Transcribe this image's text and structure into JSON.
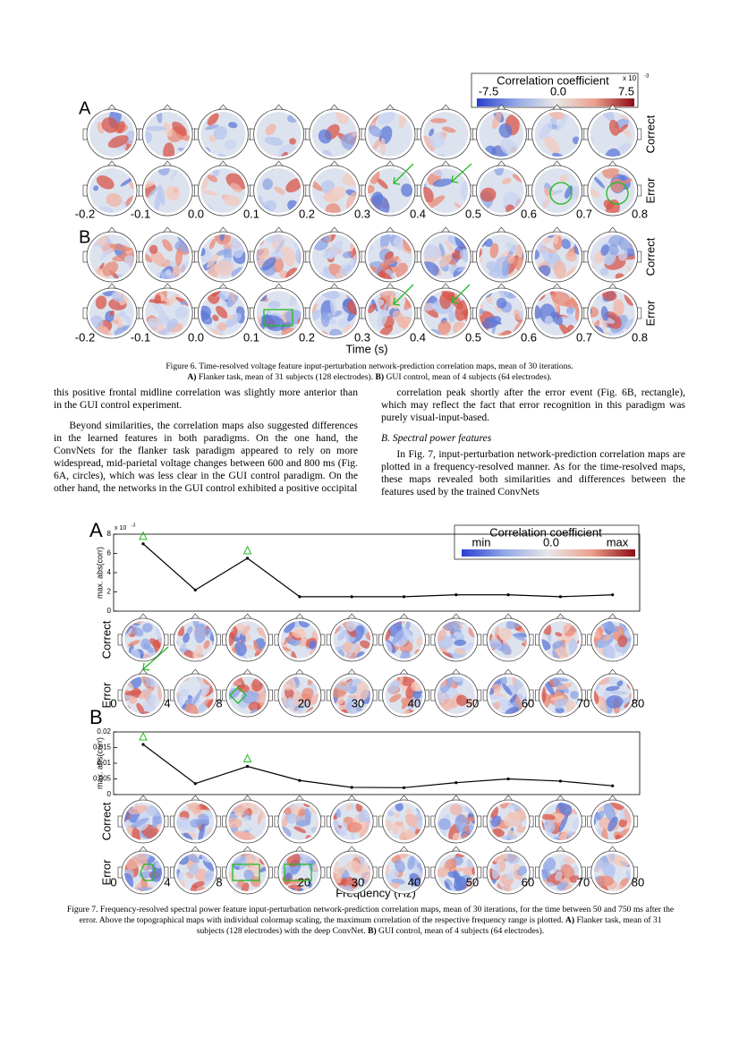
{
  "figure6": {
    "panel_labels": [
      "A",
      "B"
    ],
    "row_labels": [
      "Correct",
      "Error"
    ],
    "colorbar": {
      "title": "Correlation coefficient",
      "exponent": "x 10",
      "exponent_power": "-3",
      "labels": [
        "-7.5",
        "0.0",
        "7.5"
      ]
    },
    "time_ticks": [
      "-0.2",
      "-0.1",
      "0.0",
      "0.1",
      "0.2",
      "0.3",
      "0.4",
      "0.5",
      "0.6",
      "0.7",
      "0.8"
    ],
    "xlabel": "Time (s)",
    "caption": [
      "Figure 6.  Time-resolved voltage feature input-perturbation network-prediction correlation maps, mean of 30 iterations.",
      "A)",
      " Flanker task, mean of 31 subjects (128 electrodes). ",
      "B)",
      " GUI control, mean of 4 subjects (64 electrodes)."
    ]
  },
  "text": {
    "left": [
      "this positive frontal midline correlation was slightly more anterior than in the GUI control experiment.",
      "Beyond similarities, the correlation maps also suggested differences in the learned features in both paradigms. On the one hand, the ConvNets for the flanker task paradigm appeared to rely on more widespread, mid-parietal voltage changes between 600 and 800 ms (Fig. 6A, circles), which was less clear in the GUI control paradigm. On the other hand, the networks in the GUI control exhibited a positive occipital"
    ],
    "right": [
      "correlation peak shortly after the error event (Fig. 6B, rectangle), which may reflect the fact that error recognition in this paradigm was purely visual-input-based."
    ],
    "heading": "B.  Spectral power features",
    "right_after": [
      "In Fig. 7, input-perturbation network-prediction correlation maps are plotted in a frequency-resolved manner. As for the time-resolved maps, these maps revealed both similarities and differences between the features used by the trained ConvNets"
    ]
  },
  "figure7": {
    "panel_labels": [
      "A",
      "B"
    ],
    "row_labels": [
      "Correct",
      "Error"
    ],
    "colorbar": {
      "title": "Correlation coefficient",
      "labels": [
        "min",
        "0.0",
        "max"
      ]
    },
    "freq_ticks": [
      "0",
      "4",
      "8",
      "20",
      "30",
      "40",
      "50",
      "60",
      "70",
      "80"
    ],
    "xlabel": "Frequency (Hz)",
    "charts": [
      {
        "type": "line",
        "ylabel": "max. abs(corr)",
        "exponent": "x 10",
        "exponent_power": "-3",
        "values": [
          7.0,
          2.2,
          5.5,
          1.5,
          1.5,
          1.5,
          1.7,
          1.7,
          1.5,
          1.7
        ],
        "color": "#000000",
        "ylim": [
          0,
          8
        ],
        "yticks": [
          0,
          2,
          4,
          6,
          8
        ],
        "highlight_indices": [
          0,
          2
        ],
        "highlight_color": "#22bb22"
      },
      {
        "type": "line",
        "ylabel": "max. abs(corr)",
        "values": [
          0.016,
          0.0035,
          0.009,
          0.0045,
          0.0023,
          0.0022,
          0.0038,
          0.005,
          0.0043,
          0.0028
        ],
        "color": "#000000",
        "ylim": [
          0,
          0.02
        ],
        "yticks": [
          0,
          0.005,
          0.01,
          0.015,
          0.02
        ],
        "highlight_indices": [
          0,
          2
        ],
        "highlight_color": "#22bb22"
      }
    ],
    "caption": [
      "Figure 7. Frequency-resolved spectral power feature input-perturbation network-prediction correlation maps, mean of 30 iterations, for the time between 50 and 750 ms after the error. Above the topographical maps with individual colormap scaling, the maximum correlation of the respective frequency range is plotted. ",
      "A)",
      " Flanker task, mean of 31 subjects (128 electrodes) with the deep ConvNet. ",
      "B)",
      " GUI control, mean of 4 subjects (64 electrodes)."
    ]
  }
}
